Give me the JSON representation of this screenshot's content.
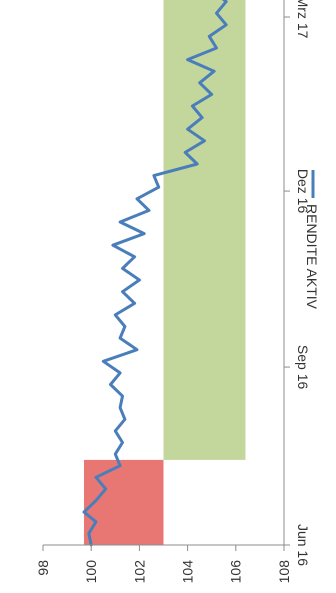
{
  "chart_data": {
    "type": "line",
    "orientation": "rotated-90-clockwise",
    "title": "",
    "xlabel": "",
    "ylabel": "",
    "ylim": [
      98,
      108
    ],
    "y_ticks": [
      "98",
      "100",
      "102",
      "104",
      "106",
      "108"
    ],
    "x_range": [
      "2016-06-01",
      "2017-04-15"
    ],
    "x_ticks": [
      {
        "date": "2016-06-01",
        "label": "Jun 16"
      },
      {
        "date": "2016-09-01",
        "label": "Sep 16"
      },
      {
        "date": "2016-12-01",
        "label": "Dez 16"
      },
      {
        "date": "2017-03-01",
        "label": "Mrz 17"
      }
    ],
    "legend": {
      "position": "right",
      "entries": [
        "RENDITE AKTIV"
      ]
    },
    "grid": false,
    "bands": [
      {
        "x_start": "2016-06-01",
        "x_end": "2016-07-15",
        "y_low": 99.7,
        "y_high": 103.0,
        "color": "#e87774"
      },
      {
        "x_start": "2016-07-15",
        "x_end": "2017-04-15",
        "y_low": 103.0,
        "y_high": 106.4,
        "color": "#c3d69b"
      }
    ],
    "series": [
      {
        "name": "RENDITE AKTIV",
        "color": "#4a7ebb",
        "points": [
          [
            "2016-06-01",
            100.0
          ],
          [
            "2016-06-07",
            99.9
          ],
          [
            "2016-06-13",
            100.2
          ],
          [
            "2016-06-18",
            99.7
          ],
          [
            "2016-06-24",
            100.2
          ],
          [
            "2016-06-30",
            100.6
          ],
          [
            "2016-07-06",
            100.2
          ],
          [
            "2016-07-12",
            101.2
          ],
          [
            "2016-07-18",
            101.0
          ],
          [
            "2016-07-24",
            101.3
          ],
          [
            "2016-07-30",
            101.0
          ],
          [
            "2016-08-05",
            101.4
          ],
          [
            "2016-08-11",
            101.2
          ],
          [
            "2016-08-17",
            101.3
          ],
          [
            "2016-08-23",
            100.8
          ],
          [
            "2016-08-29",
            101.2
          ],
          [
            "2016-09-04",
            100.5
          ],
          [
            "2016-09-10",
            101.9
          ],
          [
            "2016-09-16",
            101.2
          ],
          [
            "2016-09-22",
            101.4
          ],
          [
            "2016-09-28",
            101.0
          ],
          [
            "2016-10-04",
            101.8
          ],
          [
            "2016-10-10",
            101.3
          ],
          [
            "2016-10-16",
            102.0
          ],
          [
            "2016-10-22",
            101.3
          ],
          [
            "2016-10-28",
            101.8
          ],
          [
            "2016-11-03",
            100.9
          ],
          [
            "2016-11-09",
            102.2
          ],
          [
            "2016-11-15",
            101.2
          ],
          [
            "2016-11-21",
            102.4
          ],
          [
            "2016-11-27",
            101.9
          ],
          [
            "2016-12-03",
            102.8
          ],
          [
            "2016-12-09",
            102.6
          ],
          [
            "2016-12-15",
            104.4
          ],
          [
            "2016-12-21",
            103.9
          ],
          [
            "2016-12-27",
            104.7
          ],
          [
            "2017-01-02",
            104.0
          ],
          [
            "2017-01-08",
            104.6
          ],
          [
            "2017-01-14",
            104.2
          ],
          [
            "2017-01-20",
            105.0
          ],
          [
            "2017-01-26",
            104.5
          ],
          [
            "2017-02-01",
            105.1
          ],
          [
            "2017-02-07",
            104.0
          ],
          [
            "2017-02-13",
            105.2
          ],
          [
            "2017-02-19",
            104.9
          ],
          [
            "2017-02-25",
            105.6
          ],
          [
            "2017-03-03",
            105.2
          ],
          [
            "2017-03-09",
            105.6
          ],
          [
            "2017-03-15",
            105.0
          ],
          [
            "2017-03-21",
            105.3
          ],
          [
            "2017-03-27",
            106.0
          ],
          [
            "2017-04-02",
            106.2
          ],
          [
            "2017-04-08",
            106.4
          ],
          [
            "2017-04-15",
            106.8
          ]
        ]
      }
    ]
  }
}
